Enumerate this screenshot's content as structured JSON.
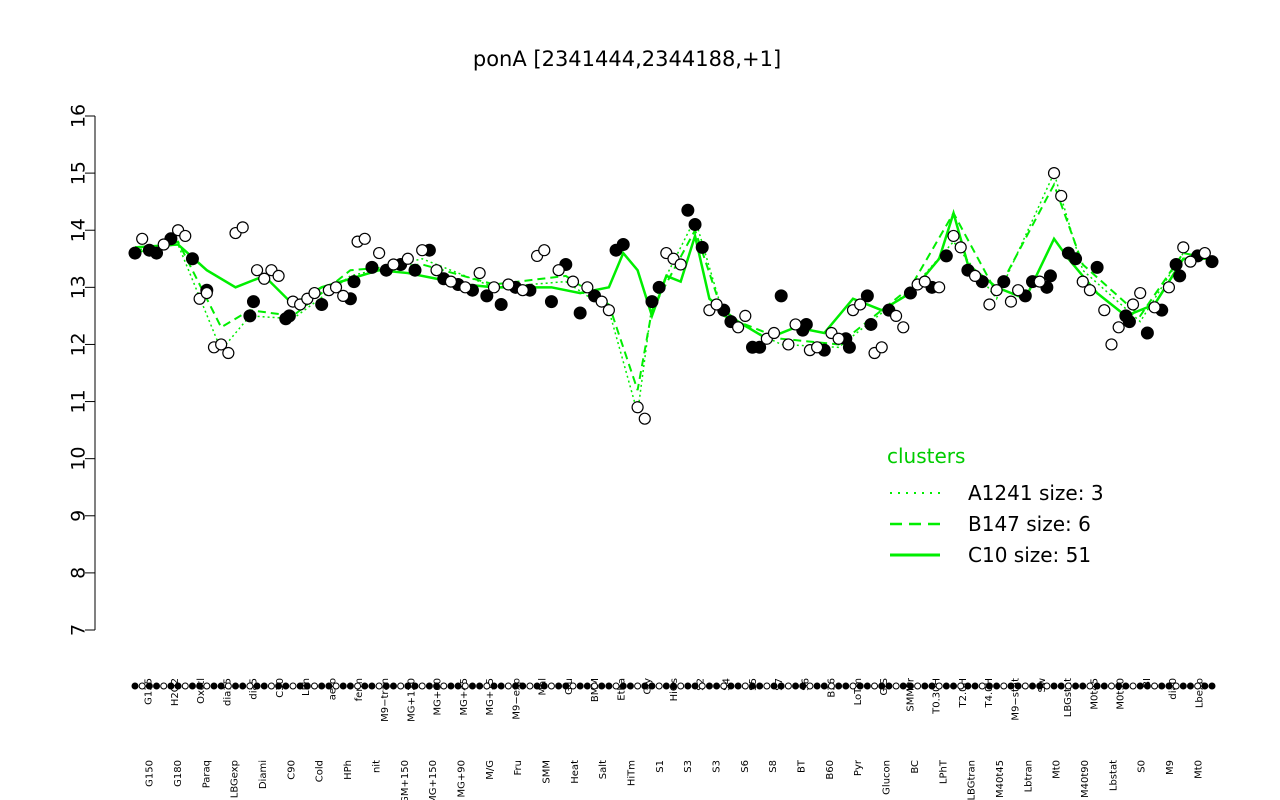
{
  "chart_data": {
    "type": "scatter",
    "title": "ponA [2341444,2344188,+1]",
    "xlabel": "",
    "ylabel": "",
    "ylim": [
      7,
      16
    ],
    "yticks": [
      7,
      8,
      9,
      10,
      11,
      12,
      13,
      14,
      15,
      16
    ],
    "grid": false,
    "legend": {
      "title": "clusters",
      "placement": "right",
      "entries": [
        {
          "label": "A1241 size: 3",
          "style": "dotted",
          "color": "#00ee00"
        },
        {
          "label": "B147 size: 6",
          "style": "dashed",
          "color": "#00ee00"
        },
        {
          "label": "C10 size: 51",
          "style": "solid",
          "color": "#00ee00"
        }
      ]
    },
    "x_labels_top": [
      "G135",
      "H2O2",
      "Oxctl",
      "dia15",
      "dia5",
      "C30",
      "LPh",
      "aero",
      "ferm",
      "M9−tran",
      "MG+120",
      "MG+60",
      "MG+45",
      "MG+15",
      "M9−exp",
      "Mal",
      "Glu",
      "BMM",
      "Etha",
      "Gly",
      "HiOs",
      "S2",
      "S4",
      "S5",
      "S7",
      "S6",
      "B36",
      "LoTm",
      "G/S",
      "SMMPr",
      "T0.30H",
      "T2.0H",
      "T4.0H",
      "M9−stat",
      "Sw",
      "LBGstat",
      "M0t45",
      "M0t90",
      "BI",
      "dia0",
      "Lbexp"
    ],
    "x_labels_bottom": [
      "G150",
      "G180",
      "Paraq",
      "LBGexp",
      "Diami",
      "C90",
      "Cold",
      "HPh",
      "nit",
      "GM+150",
      "MG+150",
      "MG+90",
      "M/G",
      "Fru",
      "SMM",
      "Heat",
      "Salt",
      "HiTm",
      "S1",
      "S3",
      "S3",
      "S6",
      "S8",
      "BT",
      "B60",
      "Pyr",
      "Glucon",
      "BC",
      "LPhT",
      "LBGtran",
      "M40t45",
      "Lbtran",
      "Mt0",
      "M40t90",
      "Lbstat",
      "S0",
      "M9",
      "Mt0"
    ],
    "points_open": [
      {
        "x": 1,
        "y": 13.85
      },
      {
        "x": 4,
        "y": 13.75
      },
      {
        "x": 6,
        "y": 14.0
      },
      {
        "x": 7,
        "y": 13.9
      },
      {
        "x": 9,
        "y": 12.8
      },
      {
        "x": 10,
        "y": 12.9
      },
      {
        "x": 11,
        "y": 11.95
      },
      {
        "x": 12,
        "y": 12.0
      },
      {
        "x": 13,
        "y": 11.85
      },
      {
        "x": 14,
        "y": 13.95
      },
      {
        "x": 15,
        "y": 14.05
      },
      {
        "x": 17,
        "y": 13.3
      },
      {
        "x": 18,
        "y": 13.15
      },
      {
        "x": 19,
        "y": 13.3
      },
      {
        "x": 20,
        "y": 13.2
      },
      {
        "x": 22,
        "y": 12.75
      },
      {
        "x": 23,
        "y": 12.7
      },
      {
        "x": 24,
        "y": 12.8
      },
      {
        "x": 25,
        "y": 12.9
      },
      {
        "x": 27,
        "y": 12.95
      },
      {
        "x": 28,
        "y": 13.0
      },
      {
        "x": 29,
        "y": 12.85
      },
      {
        "x": 31,
        "y": 13.8
      },
      {
        "x": 32,
        "y": 13.85
      },
      {
        "x": 34,
        "y": 13.6
      },
      {
        "x": 36,
        "y": 13.4
      },
      {
        "x": 38,
        "y": 13.5
      },
      {
        "x": 40,
        "y": 13.65
      },
      {
        "x": 42,
        "y": 13.3
      },
      {
        "x": 44,
        "y": 13.1
      },
      {
        "x": 46,
        "y": 13.0
      },
      {
        "x": 48,
        "y": 13.25
      },
      {
        "x": 50,
        "y": 13.0
      },
      {
        "x": 52,
        "y": 13.05
      },
      {
        "x": 54,
        "y": 12.95
      },
      {
        "x": 56,
        "y": 13.55
      },
      {
        "x": 57,
        "y": 13.65
      },
      {
        "x": 59,
        "y": 13.3
      },
      {
        "x": 61,
        "y": 13.1
      },
      {
        "x": 63,
        "y": 13.0
      },
      {
        "x": 65,
        "y": 12.75
      },
      {
        "x": 66,
        "y": 12.6
      },
      {
        "x": 70,
        "y": 10.9
      },
      {
        "x": 71,
        "y": 10.7
      },
      {
        "x": 74,
        "y": 13.6
      },
      {
        "x": 75,
        "y": 13.5
      },
      {
        "x": 76,
        "y": 13.4
      },
      {
        "x": 80,
        "y": 12.6
      },
      {
        "x": 81,
        "y": 12.7
      },
      {
        "x": 84,
        "y": 12.3
      },
      {
        "x": 85,
        "y": 12.5
      },
      {
        "x": 88,
        "y": 12.1
      },
      {
        "x": 89,
        "y": 12.2
      },
      {
        "x": 91,
        "y": 12.0
      },
      {
        "x": 92,
        "y": 12.35
      },
      {
        "x": 94,
        "y": 11.9
      },
      {
        "x": 95,
        "y": 11.95
      },
      {
        "x": 97,
        "y": 12.2
      },
      {
        "x": 98,
        "y": 12.1
      },
      {
        "x": 100,
        "y": 12.6
      },
      {
        "x": 101,
        "y": 12.7
      },
      {
        "x": 103,
        "y": 11.85
      },
      {
        "x": 104,
        "y": 11.95
      },
      {
        "x": 106,
        "y": 12.5
      },
      {
        "x": 107,
        "y": 12.3
      },
      {
        "x": 109,
        "y": 13.05
      },
      {
        "x": 110,
        "y": 13.1
      },
      {
        "x": 112,
        "y": 13.0
      },
      {
        "x": 114,
        "y": 13.9
      },
      {
        "x": 115,
        "y": 13.7
      },
      {
        "x": 117,
        "y": 13.2
      },
      {
        "x": 119,
        "y": 12.7
      },
      {
        "x": 120,
        "y": 12.95
      },
      {
        "x": 122,
        "y": 12.75
      },
      {
        "x": 123,
        "y": 12.95
      },
      {
        "x": 126,
        "y": 13.1
      },
      {
        "x": 128,
        "y": 15.0
      },
      {
        "x": 129,
        "y": 14.6
      },
      {
        "x": 132,
        "y": 13.1
      },
      {
        "x": 133,
        "y": 12.95
      },
      {
        "x": 135,
        "y": 12.6
      },
      {
        "x": 136,
        "y": 12.0
      },
      {
        "x": 137,
        "y": 12.3
      },
      {
        "x": 139,
        "y": 12.7
      },
      {
        "x": 140,
        "y": 12.9
      },
      {
        "x": 142,
        "y": 12.65
      },
      {
        "x": 144,
        "y": 13.0
      },
      {
        "x": 146,
        "y": 13.7
      },
      {
        "x": 147,
        "y": 13.45
      },
      {
        "x": 149,
        "y": 13.6
      }
    ],
    "points_filled": [
      {
        "x": 0,
        "y": 13.6
      },
      {
        "x": 2,
        "y": 13.65
      },
      {
        "x": 3,
        "y": 13.6
      },
      {
        "x": 5,
        "y": 13.85
      },
      {
        "x": 8,
        "y": 13.5
      },
      {
        "x": 10,
        "y": 12.95
      },
      {
        "x": 16,
        "y": 12.5
      },
      {
        "x": 16.5,
        "y": 12.75
      },
      {
        "x": 21,
        "y": 12.45
      },
      {
        "x": 21.5,
        "y": 12.5
      },
      {
        "x": 26,
        "y": 12.7
      },
      {
        "x": 30,
        "y": 12.8
      },
      {
        "x": 30.5,
        "y": 13.1
      },
      {
        "x": 33,
        "y": 13.35
      },
      {
        "x": 35,
        "y": 13.3
      },
      {
        "x": 37,
        "y": 13.4
      },
      {
        "x": 39,
        "y": 13.3
      },
      {
        "x": 41,
        "y": 13.65
      },
      {
        "x": 43,
        "y": 13.15
      },
      {
        "x": 45,
        "y": 13.05
      },
      {
        "x": 47,
        "y": 12.95
      },
      {
        "x": 49,
        "y": 12.85
      },
      {
        "x": 51,
        "y": 12.7
      },
      {
        "x": 53,
        "y": 13.0
      },
      {
        "x": 55,
        "y": 12.95
      },
      {
        "x": 58,
        "y": 12.75
      },
      {
        "x": 60,
        "y": 13.4
      },
      {
        "x": 62,
        "y": 12.55
      },
      {
        "x": 64,
        "y": 12.85
      },
      {
        "x": 67,
        "y": 13.65
      },
      {
        "x": 68,
        "y": 13.75
      },
      {
        "x": 72,
        "y": 12.75
      },
      {
        "x": 73,
        "y": 13.0
      },
      {
        "x": 77,
        "y": 14.35
      },
      {
        "x": 78,
        "y": 14.1
      },
      {
        "x": 79,
        "y": 13.7
      },
      {
        "x": 82,
        "y": 12.6
      },
      {
        "x": 83,
        "y": 12.4
      },
      {
        "x": 86,
        "y": 11.95
      },
      {
        "x": 87,
        "y": 11.95
      },
      {
        "x": 90,
        "y": 12.85
      },
      {
        "x": 93,
        "y": 12.25
      },
      {
        "x": 93.5,
        "y": 12.35
      },
      {
        "x": 96,
        "y": 11.9
      },
      {
        "x": 99,
        "y": 12.1
      },
      {
        "x": 99.5,
        "y": 11.95
      },
      {
        "x": 102,
        "y": 12.85
      },
      {
        "x": 102.5,
        "y": 12.35
      },
      {
        "x": 105,
        "y": 12.6
      },
      {
        "x": 108,
        "y": 12.9
      },
      {
        "x": 111,
        "y": 13.0
      },
      {
        "x": 113,
        "y": 13.55
      },
      {
        "x": 116,
        "y": 13.3
      },
      {
        "x": 118,
        "y": 13.1
      },
      {
        "x": 121,
        "y": 13.1
      },
      {
        "x": 124,
        "y": 12.85
      },
      {
        "x": 125,
        "y": 13.1
      },
      {
        "x": 127,
        "y": 13.0
      },
      {
        "x": 127.5,
        "y": 13.2
      },
      {
        "x": 130,
        "y": 13.6
      },
      {
        "x": 131,
        "y": 13.5
      },
      {
        "x": 134,
        "y": 13.35
      },
      {
        "x": 138,
        "y": 12.5
      },
      {
        "x": 138.5,
        "y": 12.4
      },
      {
        "x": 141,
        "y": 12.2
      },
      {
        "x": 143,
        "y": 12.6
      },
      {
        "x": 145,
        "y": 13.4
      },
      {
        "x": 145.5,
        "y": 13.2
      },
      {
        "x": 148,
        "y": 13.55
      },
      {
        "x": 150,
        "y": 13.45
      }
    ],
    "line_series": [
      {
        "style": "solid",
        "x": [
          0,
          6,
          10,
          14,
          18,
          22,
          26,
          30,
          34,
          38,
          42,
          46,
          50,
          54,
          58,
          62,
          66,
          68,
          70,
          72,
          74,
          76,
          78,
          80,
          84,
          88,
          92,
          96,
          100,
          104,
          108,
          112,
          114,
          116,
          120,
          124,
          128,
          130,
          134,
          138,
          142,
          146,
          150
        ],
        "y": [
          13.7,
          13.75,
          13.3,
          13.0,
          13.2,
          12.7,
          13.0,
          13.15,
          13.3,
          13.25,
          13.15,
          13.05,
          13.0,
          13.0,
          13.0,
          12.9,
          13.0,
          13.6,
          13.3,
          12.5,
          13.2,
          13.1,
          13.9,
          12.8,
          12.4,
          12.1,
          12.3,
          12.2,
          12.8,
          12.6,
          12.9,
          13.5,
          14.3,
          13.4,
          13.0,
          12.8,
          13.85,
          13.5,
          12.9,
          12.5,
          12.7,
          13.5,
          13.5
        ]
      },
      {
        "style": "dashed",
        "x": [
          0,
          6,
          12,
          16,
          22,
          30,
          40,
          50,
          60,
          66,
          70,
          72,
          78,
          82,
          90,
          98,
          108,
          114,
          120,
          128,
          132,
          140,
          146,
          150
        ],
        "y": [
          13.6,
          13.8,
          12.3,
          12.6,
          12.5,
          13.3,
          13.4,
          13.05,
          13.2,
          12.7,
          11.2,
          12.6,
          14.0,
          12.5,
          12.1,
          12.0,
          13.0,
          14.3,
          12.9,
          14.8,
          13.4,
          12.5,
          13.6,
          13.5
        ]
      },
      {
        "style": "dotted",
        "x": [
          0,
          6,
          12,
          16,
          22,
          30,
          40,
          50,
          60,
          66,
          70,
          72,
          78,
          82,
          90,
          98,
          108,
          114,
          120,
          128,
          132,
          140,
          146,
          150
        ],
        "y": [
          13.65,
          13.75,
          11.9,
          12.5,
          12.45,
          13.2,
          13.5,
          13.0,
          13.1,
          12.6,
          10.8,
          12.7,
          14.2,
          12.5,
          12.0,
          11.95,
          12.95,
          13.8,
          12.8,
          15.0,
          13.3,
          12.4,
          13.6,
          13.5
        ]
      }
    ]
  }
}
